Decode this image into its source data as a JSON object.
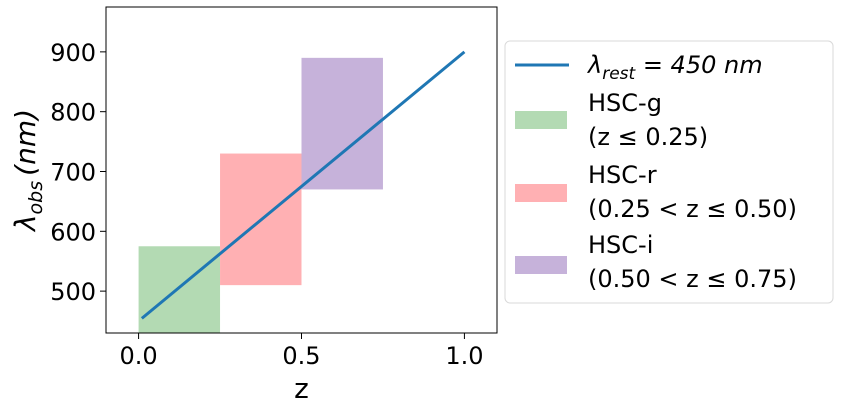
{
  "chart_data": {
    "type": "area",
    "title": "",
    "xlabel": "z",
    "ylabel": "λobs (nm)",
    "ylabel_parts": {
      "symbol": "λ",
      "subscript": "obs",
      "unit": "(nm)"
    },
    "xlim": [
      -0.1,
      1.1
    ],
    "ylim": [
      430,
      975
    ],
    "x_ticks": [
      0.0,
      0.5,
      1.0
    ],
    "x_tick_labels": [
      "0.0",
      "0.5",
      "1.0"
    ],
    "y_ticks": [
      500,
      600,
      700,
      800,
      900
    ],
    "y_tick_labels": [
      "500",
      "600",
      "700",
      "800",
      "900"
    ],
    "grid": false,
    "legend_position": "outside-right",
    "series": [
      {
        "type": "line",
        "name": "λrest = 450 nm",
        "name_parts": {
          "symbol": "λ",
          "subscript": "rest",
          "rest": " = 450 nm"
        },
        "color": "#1f77b4",
        "x": [
          0.01,
          1.0
        ],
        "y": [
          454.5,
          900
        ]
      }
    ],
    "bands": [
      {
        "name_line1": "HSC-g",
        "name_line2": "(z ≤ 0.25)",
        "color": "#b3dab3",
        "x_range": [
          0.0,
          0.25
        ],
        "y_range": [
          430,
          575
        ]
      },
      {
        "name_line1": "HSC-r",
        "name_line2": "(0.25 < z ≤ 0.50)",
        "color": "#ffb0b3",
        "x_range": [
          0.25,
          0.5
        ],
        "y_range": [
          510,
          730
        ]
      },
      {
        "name_line1": "HSC-i",
        "name_line2": "(0.50 < z ≤ 0.75)",
        "color": "#c6b2da",
        "x_range": [
          0.5,
          0.75
        ],
        "y_range": [
          670,
          890
        ]
      }
    ]
  }
}
